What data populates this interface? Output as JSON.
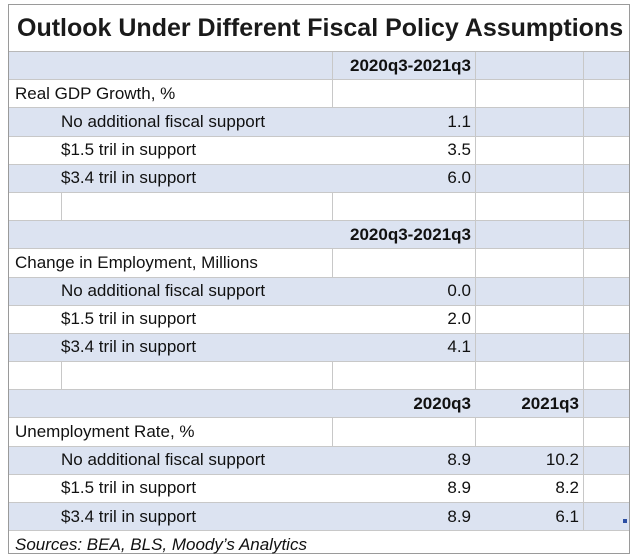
{
  "title": "Outlook Under Different Fiscal Policy Assumptions",
  "sections": [
    {
      "period_header": "2020q3-2021q3",
      "label": "Real GDP Growth, %",
      "rows": [
        {
          "label": "No additional fiscal support",
          "value": "1.1"
        },
        {
          "label": "$1.5 tril in support",
          "value": "3.5"
        },
        {
          "label": "$3.4 tril in support",
          "value": "6.0"
        }
      ]
    },
    {
      "period_header": "2020q3-2021q3",
      "label": "Change in Employment, Millions",
      "rows": [
        {
          "label": "No additional fiscal support",
          "value": "0.0"
        },
        {
          "label": "$1.5 tril in support",
          "value": "2.0"
        },
        {
          "label": "$3.4 tril in support",
          "value": "4.1"
        }
      ]
    },
    {
      "col1_header": "2020q3",
      "col2_header": "2021q3",
      "label": "Unemployment Rate, %",
      "rows": [
        {
          "label": "No additional fiscal support",
          "v1": "8.9",
          "v2": "10.2"
        },
        {
          "label": "$1.5 tril in support",
          "v1": "8.9",
          "v2": "8.2"
        },
        {
          "label": "$3.4 tril in support",
          "v1": "8.9",
          "v2": "6.1"
        }
      ]
    }
  ],
  "source": "Sources: BEA, BLS, Moody’s Analytics"
}
